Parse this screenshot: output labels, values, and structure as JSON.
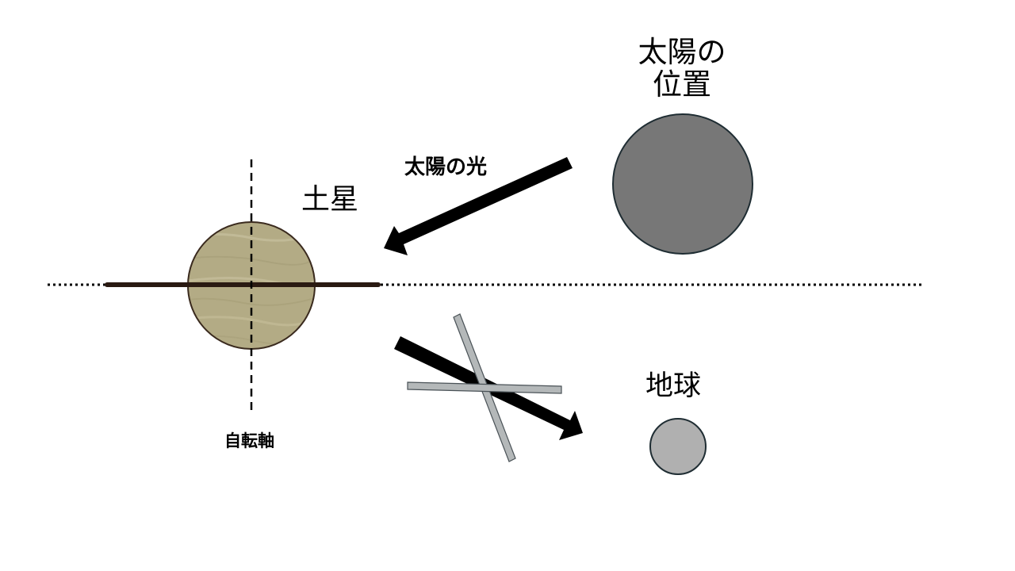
{
  "labels": {
    "sun_position_line1": "太陽の",
    "sun_position_line2": "位置",
    "sunlight": "太陽の光",
    "saturn": "土星",
    "earth": "地球",
    "rotation_axis": "自転軸"
  },
  "colors": {
    "sun_fill": "#777777",
    "sun_stroke": "#1f2d33",
    "earth_fill": "#b0b0b0",
    "earth_stroke": "#1f2d33",
    "saturn_fill": "#b3ab85",
    "saturn_stroke": "#3a2a1e",
    "ring": "#2a1a12",
    "arrow": "#000000",
    "cross_fill": "#b4b8b9",
    "cross_stroke": "#4a5257",
    "lines": "#000000"
  },
  "icons": {
    "reflected_light_blocked": "cross-mark-icon"
  }
}
